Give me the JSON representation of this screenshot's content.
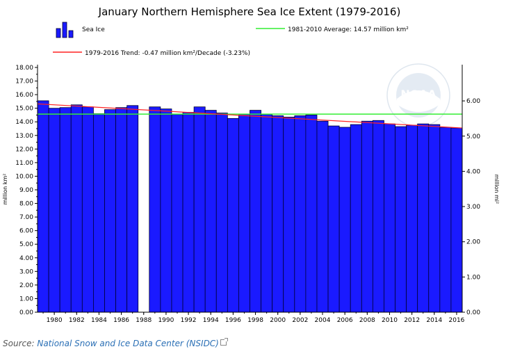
{
  "colors": {
    "bar_fill": "#1a1aff",
    "bar_stroke": "#000033",
    "average_line": "#33ee33",
    "trend_line": "#ff2222",
    "axis": "#000000",
    "source_link": "#2a6fb5"
  },
  "logo": {
    "text": "NOAA"
  },
  "source": {
    "prefix": "Source: ",
    "link_text": "National Snow and Ice Data Center (NSIDC)",
    "icon": "external-link-icon"
  },
  "chart_data": {
    "type": "bar",
    "title": "January Northern Hemisphere Sea Ice Extent (1979-2016)",
    "ylabel": "million km²",
    "y2label": "million mi²",
    "ylim": [
      0,
      18
    ],
    "y2lim": [
      0,
      6.95
    ],
    "xlim": [
      1978.5,
      2016.5
    ],
    "y_ticks": [
      "0.00",
      "1.00",
      "2.00",
      "3.00",
      "4.00",
      "5.00",
      "6.00",
      "7.00",
      "8.00",
      "9.00",
      "10.00",
      "11.00",
      "12.00",
      "13.00",
      "14.00",
      "15.00",
      "16.00",
      "17.00",
      "18.00"
    ],
    "y2_ticks": [
      "0.00",
      "1.00",
      "2.00",
      "3.00",
      "4.00",
      "5.00",
      "6.00"
    ],
    "x_ticks": [
      "1980",
      "1982",
      "1984",
      "1986",
      "1988",
      "1990",
      "1992",
      "1994",
      "1996",
      "1998",
      "2000",
      "2002",
      "2004",
      "2006",
      "2008",
      "2010",
      "2012",
      "2014",
      "2016"
    ],
    "legend": {
      "sea_ice": "Sea Ice",
      "average": "1981-2010 Average: 14.57 million km²",
      "trend": "1979-2016 Trend: -0.47 million km²/Decade (-3.23%)"
    },
    "average_value": 14.57,
    "trend_line": {
      "x": [
        1979,
        2016
      ],
      "y": [
        15.3,
        13.57
      ]
    },
    "series": [
      {
        "name": "Sea Ice",
        "x": [
          1979,
          1980,
          1981,
          1982,
          1983,
          1984,
          1985,
          1986,
          1987,
          1988,
          1989,
          1990,
          1991,
          1992,
          1993,
          1994,
          1995,
          1996,
          1997,
          1998,
          1999,
          2000,
          2001,
          2002,
          2003,
          2004,
          2005,
          2006,
          2007,
          2008,
          2009,
          2010,
          2011,
          2012,
          2013,
          2014,
          2015,
          2016
        ],
        "values": [
          15.55,
          15.0,
          15.05,
          15.25,
          15.1,
          14.6,
          14.9,
          15.05,
          15.2,
          null,
          15.1,
          14.95,
          14.55,
          14.7,
          15.1,
          14.85,
          14.65,
          14.25,
          14.55,
          14.85,
          14.55,
          14.45,
          14.35,
          14.45,
          14.5,
          14.05,
          13.7,
          13.6,
          13.8,
          14.05,
          14.1,
          13.85,
          13.65,
          13.75,
          13.85,
          13.8,
          13.6,
          13.55
        ]
      }
    ]
  }
}
